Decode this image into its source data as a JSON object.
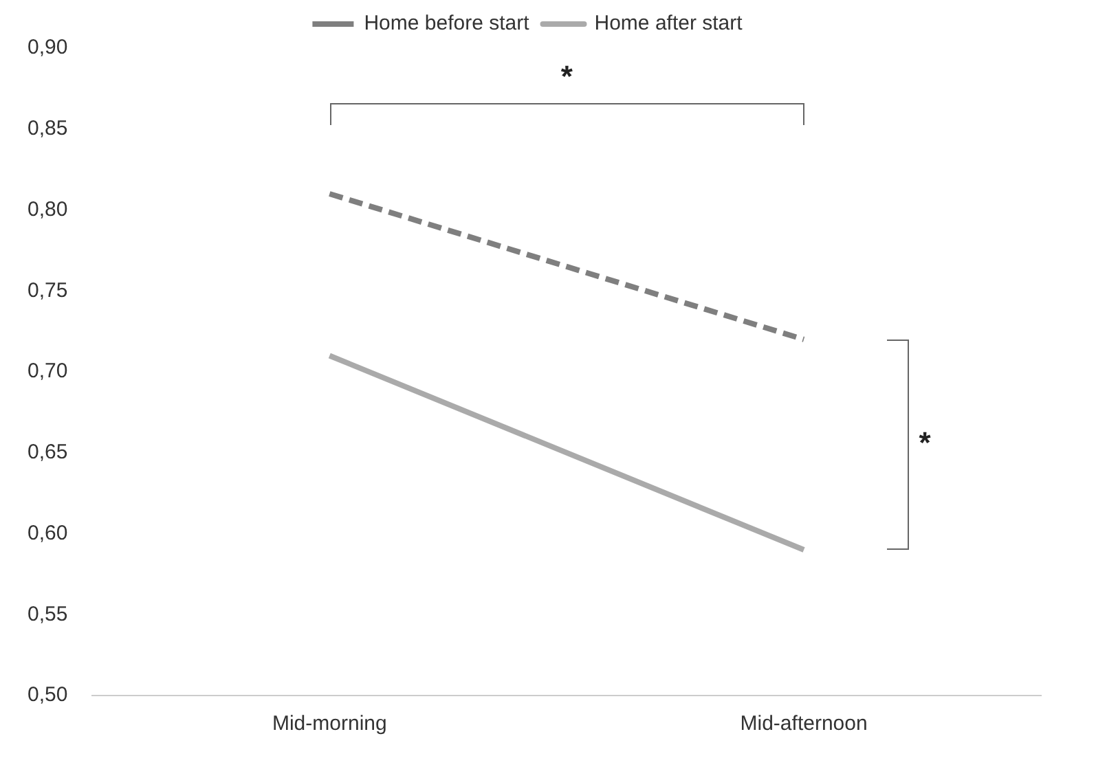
{
  "chart_data": {
    "type": "line",
    "categories": [
      "Mid-morning",
      "Mid-afternoon"
    ],
    "series": [
      {
        "name": "Home before start",
        "color": "#7f7f7f",
        "values": [
          0.81,
          0.72
        ],
        "line_style": "dashed"
      },
      {
        "name": "Home after start",
        "color": "#aaaaaa",
        "values": [
          0.71,
          0.59
        ],
        "line_style": "solid"
      }
    ],
    "ylim": [
      0.5,
      0.9
    ],
    "yticks": [
      {
        "value": 0.5,
        "label": "0,50"
      },
      {
        "value": 0.55,
        "label": "0,55"
      },
      {
        "value": 0.6,
        "label": "0,60"
      },
      {
        "value": 0.65,
        "label": "0,65"
      },
      {
        "value": 0.7,
        "label": "0,70"
      },
      {
        "value": 0.75,
        "label": "0,75"
      },
      {
        "value": 0.8,
        "label": "0,80"
      },
      {
        "value": 0.85,
        "label": "0,85"
      },
      {
        "value": 0.9,
        "label": "0,90"
      }
    ],
    "grid": false,
    "legend": "top",
    "marker": "none",
    "annotations": [
      "*",
      "*"
    ]
  }
}
